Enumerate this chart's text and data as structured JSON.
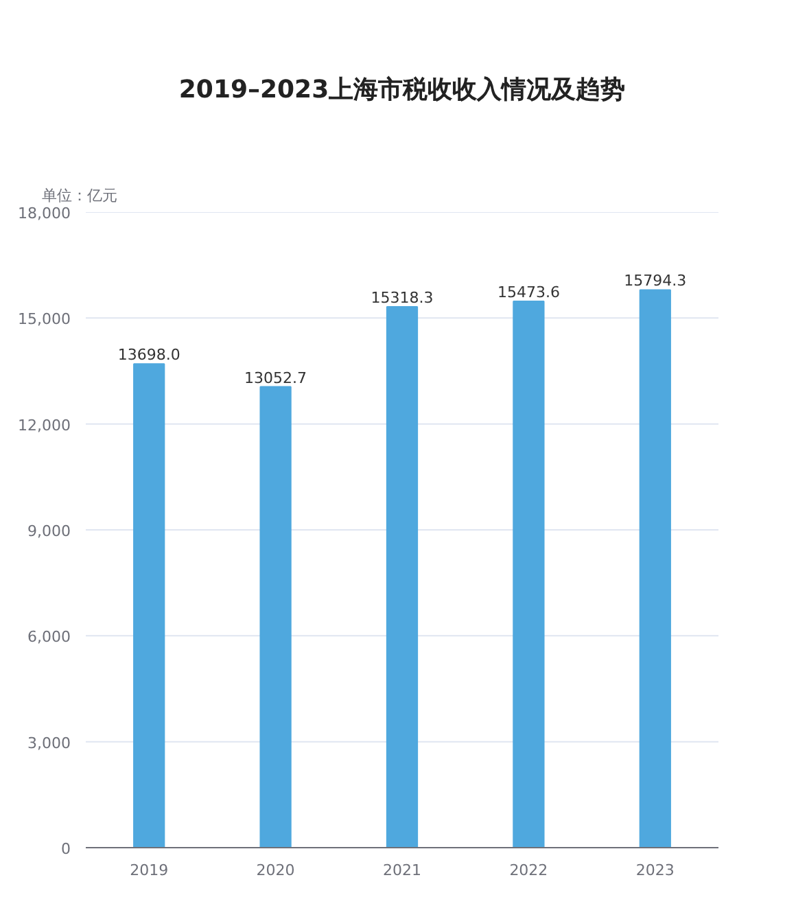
{
  "chart_data": {
    "type": "bar",
    "title": "2019–2023上海市税收收入情况及趋势",
    "ylabel": "单位：亿元",
    "categories": [
      "2019",
      "2020",
      "2021",
      "2022",
      "2023"
    ],
    "values": [
      13698.0,
      13052.7,
      15318.3,
      15473.6,
      15794.3
    ],
    "value_labels": [
      "13698.0",
      "13052.7",
      "15318.3",
      "15473.6",
      "15794.3"
    ],
    "color": "#4fa8de",
    "ylim": [
      0,
      18000
    ],
    "yticks": [
      {
        "value": 0,
        "label": "0"
      },
      {
        "value": 3000,
        "label": "3,000"
      },
      {
        "value": 6000,
        "label": "6,000"
      },
      {
        "value": 9000,
        "label": "9,000"
      },
      {
        "value": 12000,
        "label": "12,000"
      },
      {
        "value": 15000,
        "label": "15,000"
      },
      {
        "value": 18000,
        "label": "18,000"
      }
    ],
    "grid": "y"
  }
}
